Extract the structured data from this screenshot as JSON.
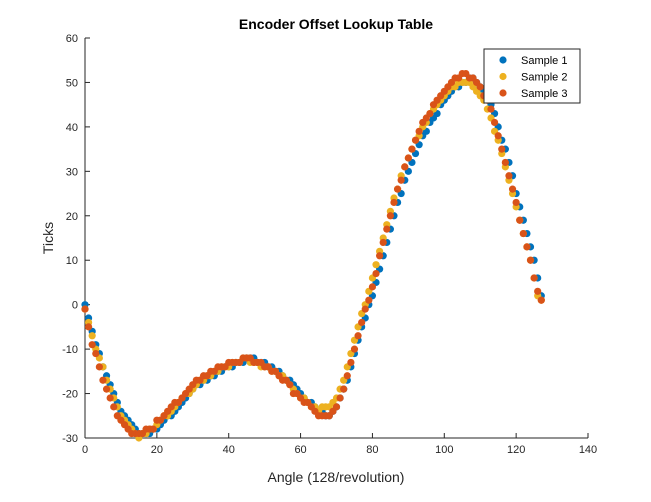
{
  "chart_data": {
    "type": "scatter",
    "title": "Encoder Offset Lookup Table",
    "xlabel": "Angle (128/revolution)",
    "ylabel": "Ticks",
    "xlim": [
      0,
      140
    ],
    "ylim": [
      -30,
      60
    ],
    "xticks": [
      0,
      20,
      40,
      60,
      80,
      100,
      120,
      140
    ],
    "yticks": [
      -30,
      -20,
      -10,
      0,
      10,
      20,
      30,
      40,
      50,
      60
    ],
    "grid": false,
    "legend_position": "top-right",
    "x_start": 0,
    "series": [
      {
        "name": "Sample 1",
        "color": "#0072BD",
        "values": [
          0,
          -3,
          -6,
          -9,
          -11,
          -14,
          -16,
          -18,
          -20,
          -22,
          -24,
          -25,
          -26,
          -27,
          -28,
          -29,
          -29,
          -29,
          -29,
          -28,
          -28,
          -27,
          -26,
          -25,
          -25,
          -24,
          -23,
          -22,
          -21,
          -20,
          -19,
          -18,
          -18,
          -17,
          -17,
          -16,
          -16,
          -15,
          -15,
          -14,
          -14,
          -14,
          -13,
          -13,
          -13,
          -12,
          -12,
          -12,
          -13,
          -13,
          -13,
          -14,
          -14,
          -15,
          -15,
          -16,
          -17,
          -17,
          -18,
          -19,
          -20,
          -21,
          -22,
          -22,
          -23,
          -24,
          -24,
          -25,
          -25,
          -24,
          -23,
          -21,
          -19,
          -17,
          -14,
          -11,
          -8,
          -5,
          -3,
          0,
          2,
          5,
          8,
          11,
          14,
          17,
          20,
          23,
          25,
          28,
          30,
          32,
          34,
          36,
          38,
          39,
          41,
          42,
          43,
          45,
          46,
          47,
          48,
          49,
          49,
          50,
          50,
          51,
          51,
          50,
          49,
          48,
          47,
          45,
          43,
          40,
          37,
          35,
          32,
          29,
          25,
          22,
          19,
          16,
          13,
          10,
          6,
          2
        ]
      },
      {
        "name": "Sample 2",
        "color": "#EDB120",
        "values": [
          -1,
          -4,
          -7,
          -10,
          -12,
          -14,
          -17,
          -19,
          -21,
          -23,
          -25,
          -26,
          -27,
          -28,
          -29,
          -30,
          -29,
          -29,
          -28,
          -28,
          -27,
          -26,
          -25,
          -25,
          -24,
          -23,
          -22,
          -21,
          -20,
          -20,
          -19,
          -18,
          -17,
          -17,
          -16,
          -16,
          -15,
          -15,
          -14,
          -14,
          -14,
          -13,
          -13,
          -13,
          -12,
          -12,
          -13,
          -13,
          -13,
          -14,
          -14,
          -14,
          -15,
          -15,
          -16,
          -16,
          -17,
          -18,
          -19,
          -20,
          -21,
          -21,
          -22,
          -23,
          -23,
          -24,
          -23,
          -23,
          -23,
          -22,
          -21,
          -19,
          -17,
          -14,
          -11,
          -8,
          -5,
          -2,
          0,
          3,
          6,
          9,
          12,
          15,
          18,
          21,
          24,
          26,
          29,
          31,
          33,
          35,
          37,
          38,
          40,
          41,
          43,
          44,
          45,
          46,
          47,
          48,
          49,
          49,
          50,
          50,
          50,
          50,
          49,
          48,
          47,
          46,
          44,
          42,
          39,
          37,
          34,
          31,
          28,
          25,
          22,
          19,
          16,
          13,
          10,
          6,
          2,
          1
        ]
      },
      {
        "name": "Sample 3",
        "color": "#D95319",
        "values": [
          -1,
          -5,
          -9,
          -11,
          -14,
          -17,
          -19,
          -21,
          -23,
          -25,
          -26,
          -27,
          -28,
          -29,
          -29,
          -29,
          -29,
          -28,
          -28,
          -28,
          -26,
          -26,
          -25,
          -24,
          -23,
          -22,
          -22,
          -21,
          -20,
          -19,
          -18,
          -17,
          -17,
          -16,
          -16,
          -15,
          -15,
          -14,
          -14,
          -14,
          -13,
          -13,
          -13,
          -13,
          -12,
          -12,
          -12,
          -13,
          -13,
          -13,
          -14,
          -14,
          -15,
          -15,
          -16,
          -17,
          -17,
          -18,
          -20,
          -20,
          -21,
          -22,
          -22,
          -23,
          -24,
          -25,
          -25,
          -25,
          -25,
          -24,
          -23,
          -21,
          -19,
          -16,
          -13,
          -10,
          -7,
          -4,
          -1,
          1,
          4,
          7,
          11,
          14,
          17,
          20,
          23,
          26,
          28,
          31,
          33,
          35,
          37,
          39,
          41,
          42,
          43,
          45,
          46,
          47,
          48,
          49,
          50,
          51,
          51,
          52,
          52,
          51,
          51,
          50,
          49,
          47,
          46,
          44,
          41,
          38,
          35,
          32,
          29,
          26,
          23,
          19,
          16,
          13,
          10,
          6,
          3,
          1
        ]
      }
    ]
  }
}
